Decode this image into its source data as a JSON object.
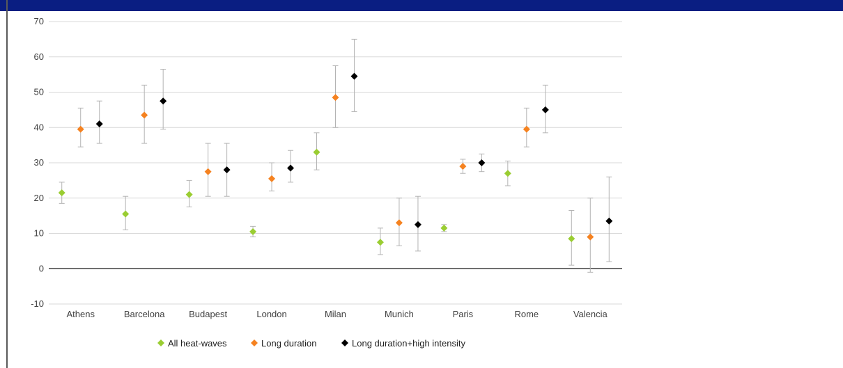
{
  "colors": {
    "header_band": "#0a1e82",
    "grid": "#d9d9d9",
    "zero_line": "#3a3a3a",
    "error_bar": "#b3b3b3"
  },
  "chart_data": {
    "type": "scatter",
    "title": "",
    "xlabel": "",
    "ylabel": "",
    "ylim": [
      -10,
      70
    ],
    "yticks": [
      -10,
      0,
      10,
      20,
      30,
      40,
      50,
      60,
      70
    ],
    "grid": true,
    "legend_position": "bottom",
    "categories": [
      "Athens",
      "Barcelona",
      "Budapest",
      "London",
      "Milan",
      "Munich",
      "Paris",
      "Rome",
      "Valencia"
    ],
    "series": [
      {
        "name": "All heat-waves",
        "color": "#9acd32",
        "values": [
          21.5,
          15.5,
          21,
          10.5,
          33,
          7.5,
          11.5,
          27,
          8.5
        ],
        "error_low": [
          18.5,
          11,
          17.5,
          9,
          28,
          4,
          10.5,
          23.5,
          1
        ],
        "error_high": [
          24.5,
          20.5,
          25,
          12,
          38.5,
          11.5,
          12.5,
          30.5,
          16.5
        ]
      },
      {
        "name": "Long duration",
        "color": "#f58220",
        "values": [
          39.5,
          43.5,
          27.5,
          25.5,
          48.5,
          13,
          29,
          39.5,
          9
        ],
        "error_low": [
          34.5,
          35.5,
          20.5,
          22,
          40,
          6.5,
          27,
          34.5,
          -1
        ],
        "error_high": [
          45.5,
          52,
          35.5,
          30,
          57.5,
          20,
          31,
          45.5,
          20
        ]
      },
      {
        "name": "Long duration+high intensity",
        "color": "#000000",
        "values": [
          41,
          47.5,
          28,
          28.5,
          54.5,
          12.5,
          30,
          45,
          13.5
        ],
        "error_low": [
          35.5,
          39.5,
          20.5,
          24.5,
          44.5,
          5,
          27.5,
          38.5,
          2
        ],
        "error_high": [
          47.5,
          56.5,
          35.5,
          33.5,
          65,
          20.5,
          32.5,
          52,
          26
        ]
      }
    ]
  }
}
